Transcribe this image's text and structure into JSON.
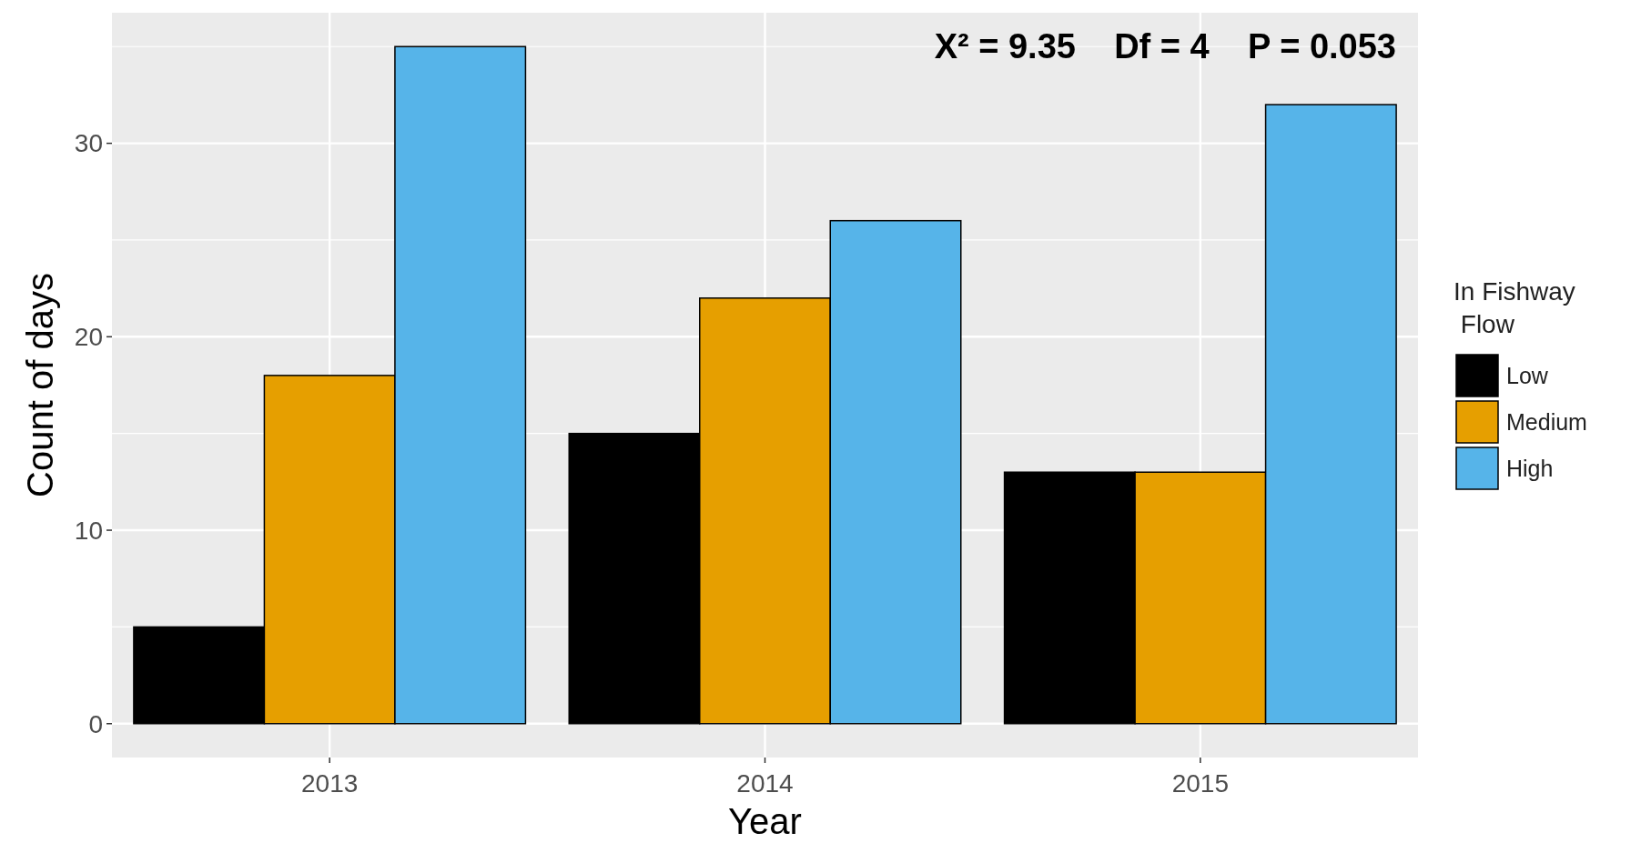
{
  "chart_data": {
    "type": "bar",
    "xlabel": "Year",
    "ylabel": "Count of days",
    "legend_title": "In Fishway\n Flow",
    "categories": [
      "2013",
      "2014",
      "2015"
    ],
    "series": [
      {
        "name": "Low",
        "color": "#000000",
        "values": [
          5,
          15,
          13
        ]
      },
      {
        "name": "Medium",
        "color": "#e69f00",
        "values": [
          18,
          22,
          13
        ]
      },
      {
        "name": "High",
        "color": "#56b4e9",
        "values": [
          35,
          26,
          32
        ]
      }
    ],
    "ylim": [
      -1.75,
      36.75
    ],
    "yticks": [
      0,
      10,
      20,
      30
    ],
    "grid": true,
    "legend": "right",
    "annotations": [
      "X² = 9.35    Df = 4    P = 0.053"
    ]
  }
}
